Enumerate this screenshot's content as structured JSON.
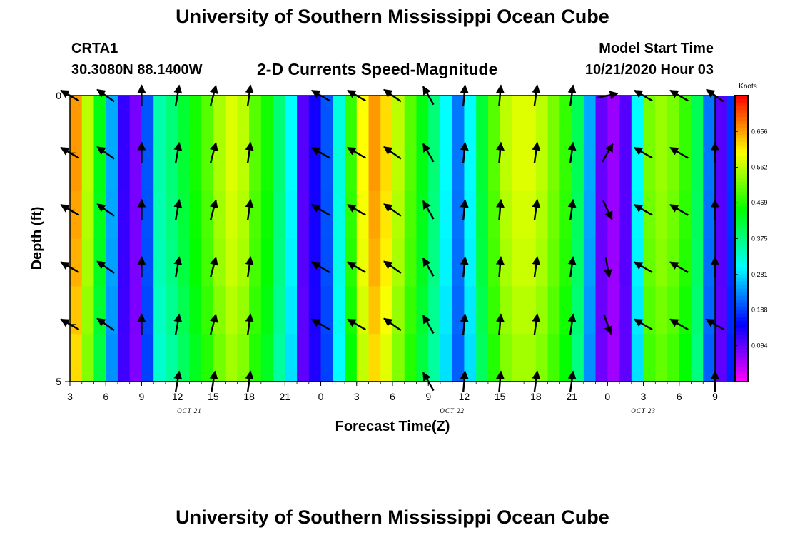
{
  "page": {
    "title_top": "University of Southern Mississippi Ocean Cube",
    "title_bottom": "University of Southern Mississippi Ocean Cube",
    "station": "CRTA1",
    "location": "30.3080N 88.1400W",
    "plot_title": "2-D Currents Speed-Magnitude",
    "model_start_label": "Model Start Time",
    "model_start_value": "10/21/2020 Hour 03"
  },
  "colorbar": {
    "unit_label": "Knots",
    "tick_labels": [
      "0.656",
      "0.562",
      "0.469",
      "0.375",
      "0.281",
      "0.188",
      "0.094"
    ]
  },
  "chart_data": {
    "type": "heatmap",
    "title": "2-D Currents Speed-Magnitude",
    "xlabel": "Forecast Time(Z)",
    "ylabel": "Depth (ft)",
    "y_range": [
      0,
      5
    ],
    "y_tick_labels": [
      "0",
      "5"
    ],
    "x_start_hour": 3,
    "x_hour_range": [
      3,
      57
    ],
    "x_tick_labels": [
      "3",
      "6",
      "9",
      "12",
      "15",
      "18",
      "21",
      "0",
      "3",
      "6",
      "9",
      "12",
      "15",
      "18",
      "21",
      "0",
      "3",
      "6",
      "9"
    ],
    "date_labels": [
      {
        "text": "OCT 21",
        "hour": 13
      },
      {
        "text": "OCT 22",
        "hour": 35
      },
      {
        "text": "OCT 23",
        "hour": 51
      }
    ],
    "value_range_knots": [
      0.0,
      0.75
    ],
    "depth_levels_ft": [
      0,
      1,
      2,
      3,
      4,
      5
    ],
    "speed_by_hour_knots": [
      0.66,
      0.56,
      0.44,
      0.25,
      0.12,
      0.08,
      0.2,
      0.35,
      0.38,
      0.42,
      0.46,
      0.5,
      0.55,
      0.58,
      0.56,
      0.5,
      0.46,
      0.38,
      0.3,
      0.1,
      0.14,
      0.2,
      0.32,
      0.48,
      0.6,
      0.66,
      0.62,
      0.56,
      0.5,
      0.44,
      0.38,
      0.3,
      0.22,
      0.3,
      0.42,
      0.5,
      0.56,
      0.58,
      0.58,
      0.56,
      0.52,
      0.48,
      0.4,
      0.25,
      0.09,
      0.06,
      0.1,
      0.3,
      0.52,
      0.54,
      0.52,
      0.48,
      0.4,
      0.22,
      0.1,
      0.18
    ],
    "depth_factor": [
      1.0,
      1.0,
      0.99,
      0.98,
      0.96,
      0.94
    ],
    "vector_hours": [
      3,
      6,
      9,
      12,
      15,
      18,
      21,
      24,
      27,
      30,
      33,
      36,
      39,
      42,
      45,
      48,
      51,
      54,
      57
    ],
    "vector_directions_deg": [
      300,
      305,
      0,
      10,
      15,
      8,
      -1,
      300,
      300,
      305,
      330,
      5,
      5,
      8,
      8,
      35,
      300,
      300,
      305
    ],
    "vector_directions_by_depth_deg": [
      [
        300,
        305,
        0,
        10,
        15,
        8,
        -1,
        300,
        300,
        305,
        330,
        5,
        5,
        8,
        8,
        78,
        300,
        300,
        305
      ],
      [
        300,
        305,
        0,
        10,
        15,
        8,
        -1,
        300,
        300,
        305,
        330,
        5,
        5,
        8,
        8,
        30,
        300,
        300,
        0
      ],
      [
        300,
        305,
        0,
        10,
        15,
        8,
        -1,
        300,
        300,
        305,
        330,
        5,
        5,
        8,
        8,
        155,
        300,
        300,
        0
      ],
      [
        300,
        305,
        0,
        10,
        15,
        8,
        -1,
        300,
        300,
        305,
        330,
        5,
        5,
        8,
        8,
        170,
        300,
        300,
        0
      ],
      [
        300,
        305,
        0,
        10,
        15,
        8,
        -1,
        300,
        300,
        305,
        330,
        5,
        5,
        8,
        8,
        160,
        300,
        300,
        300
      ],
      [
        -1,
        -1,
        -1,
        10,
        10,
        8,
        -1,
        -1,
        -1,
        -1,
        330,
        5,
        5,
        8,
        8,
        -1,
        -1,
        -1,
        0
      ]
    ]
  }
}
